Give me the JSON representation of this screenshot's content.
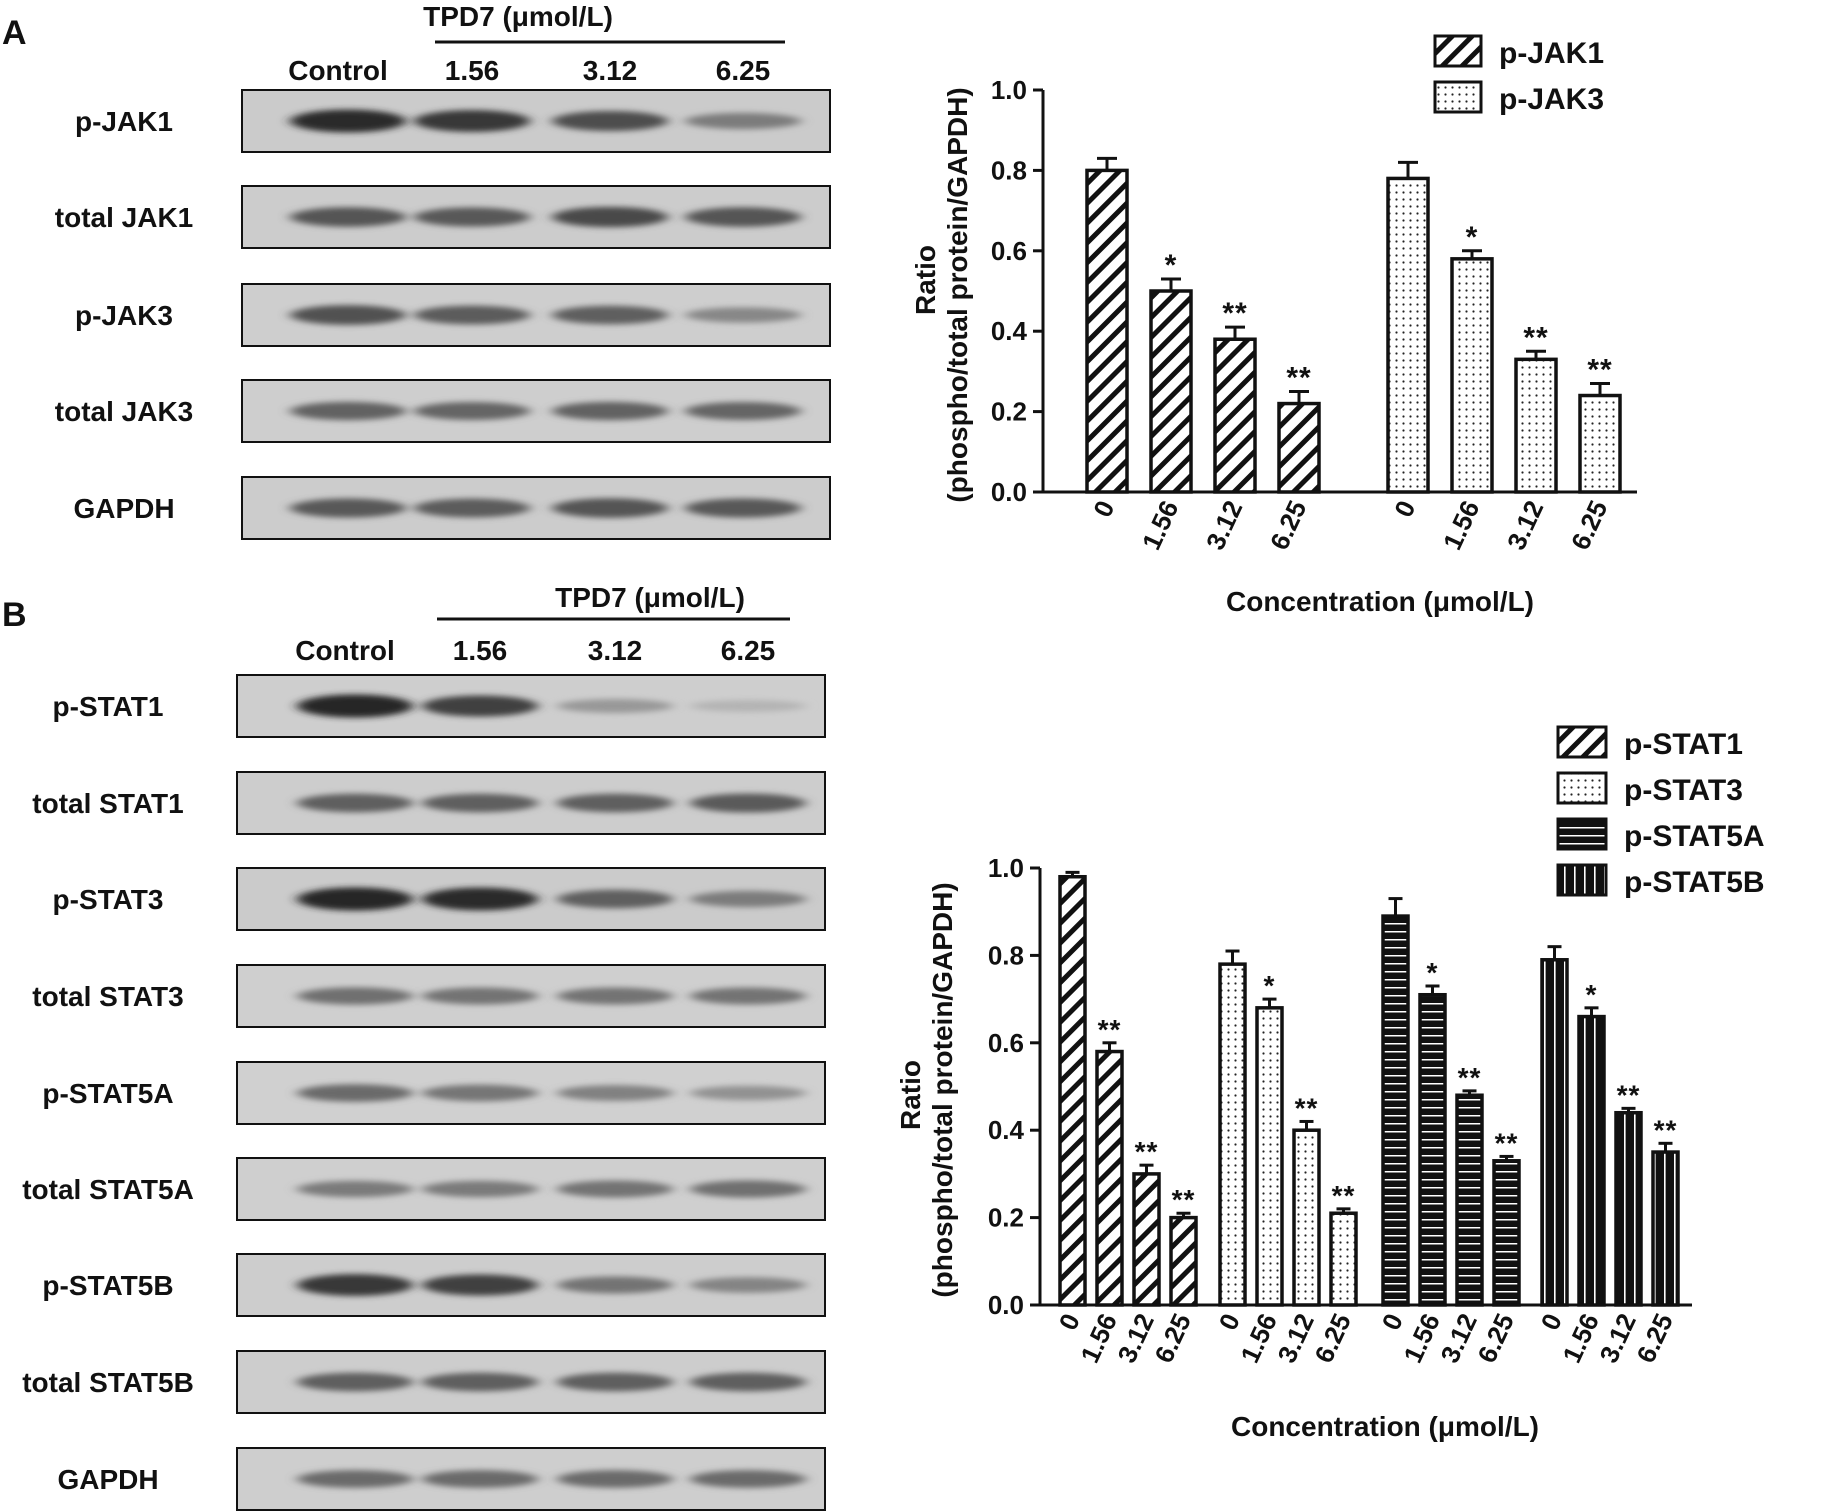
{
  "panelA": {
    "letter": "A",
    "treatment_label": "TPD7 (μmol/L)",
    "lanes": [
      "Control",
      "1.56",
      "3.12",
      "6.25"
    ],
    "rows": [
      {
        "label": "p-JAK1",
        "band": [
          0.92,
          0.85,
          0.72,
          0.45
        ]
      },
      {
        "label": "total JAK1",
        "band": [
          0.68,
          0.66,
          0.74,
          0.68
        ]
      },
      {
        "label": "p-JAK3",
        "band": [
          0.7,
          0.64,
          0.62,
          0.38
        ]
      },
      {
        "label": "total JAK3",
        "band": [
          0.6,
          0.58,
          0.6,
          0.58
        ]
      },
      {
        "label": "GAPDH",
        "band": [
          0.66,
          0.64,
          0.68,
          0.66
        ]
      }
    ]
  },
  "panelB": {
    "letter": "B",
    "treatment_label": "TPD7 (μmol/L)",
    "lanes": [
      "Control",
      "1.56",
      "3.12",
      "6.25"
    ],
    "rows": [
      {
        "label": "p-STAT1",
        "band": [
          0.95,
          0.8,
          0.28,
          0.12
        ]
      },
      {
        "label": "total STAT1",
        "band": [
          0.62,
          0.62,
          0.62,
          0.65
        ]
      },
      {
        "label": "p-STAT3",
        "band": [
          0.95,
          0.92,
          0.62,
          0.45
        ]
      },
      {
        "label": "total STAT3",
        "band": [
          0.52,
          0.5,
          0.5,
          0.5
        ]
      },
      {
        "label": "p-STAT5A",
        "band": [
          0.55,
          0.48,
          0.42,
          0.32
        ]
      },
      {
        "label": "total STAT5A",
        "band": [
          0.46,
          0.46,
          0.5,
          0.52
        ]
      },
      {
        "label": "p-STAT5B",
        "band": [
          0.85,
          0.8,
          0.5,
          0.4
        ]
      },
      {
        "label": "total STAT5B",
        "band": [
          0.62,
          0.62,
          0.62,
          0.62
        ]
      },
      {
        "label": "GAPDH",
        "band": [
          0.55,
          0.55,
          0.55,
          0.55
        ]
      }
    ]
  },
  "chart_data": [
    {
      "type": "bar",
      "xlabel": "Concentration (μmol/L)",
      "ylabel_line1": "Ratio",
      "ylabel_line2": "(phospho/total protein/GAPDH)",
      "ylim": [
        0,
        1.0
      ],
      "yticks": [
        "0.0",
        "0.2",
        "0.4",
        "0.6",
        "0.8",
        "1.0"
      ],
      "categories": [
        "0",
        "1.56",
        "3.12",
        "6.25"
      ],
      "legend_position": "top-right",
      "series": [
        {
          "name": "p-JAK1",
          "pattern": "diagonal",
          "values": [
            0.8,
            0.5,
            0.38,
            0.22
          ],
          "errors": [
            0.03,
            0.03,
            0.03,
            0.03
          ],
          "significance": [
            "",
            "*",
            "**",
            "**"
          ]
        },
        {
          "name": "p-JAK3",
          "pattern": "dots",
          "values": [
            0.78,
            0.58,
            0.33,
            0.24
          ],
          "errors": [
            0.04,
            0.02,
            0.02,
            0.03
          ],
          "significance": [
            "",
            "*",
            "**",
            "**"
          ]
        }
      ]
    },
    {
      "type": "bar",
      "xlabel": "Concentration (μmol/L)",
      "ylabel_line1": "Ratio",
      "ylabel_line2": "(phospho/total protein/GAPDH)",
      "ylim": [
        0,
        1.0
      ],
      "yticks": [
        "0.0",
        "0.2",
        "0.4",
        "0.6",
        "0.8",
        "1.0"
      ],
      "categories": [
        "0",
        "1.56",
        "3.12",
        "6.25"
      ],
      "legend_position": "top-right",
      "series": [
        {
          "name": "p-STAT1",
          "pattern": "diagonal",
          "values": [
            0.98,
            0.58,
            0.3,
            0.2
          ],
          "errors": [
            0.01,
            0.02,
            0.02,
            0.01
          ],
          "significance": [
            "",
            "**",
            "**",
            "**"
          ]
        },
        {
          "name": "p-STAT3",
          "pattern": "dots",
          "values": [
            0.78,
            0.68,
            0.4,
            0.21
          ],
          "errors": [
            0.03,
            0.02,
            0.02,
            0.01
          ],
          "significance": [
            "",
            "*",
            "**",
            "**"
          ]
        },
        {
          "name": "p-STAT5A",
          "pattern": "horizontal",
          "values": [
            0.89,
            0.71,
            0.48,
            0.33
          ],
          "errors": [
            0.04,
            0.02,
            0.01,
            0.01
          ],
          "significance": [
            "",
            "*",
            "**",
            "**"
          ]
        },
        {
          "name": "p-STAT5B",
          "pattern": "vertical",
          "values": [
            0.79,
            0.66,
            0.44,
            0.35
          ],
          "errors": [
            0.03,
            0.02,
            0.01,
            0.02
          ],
          "significance": [
            "",
            "*",
            "**",
            "**"
          ]
        }
      ]
    }
  ]
}
